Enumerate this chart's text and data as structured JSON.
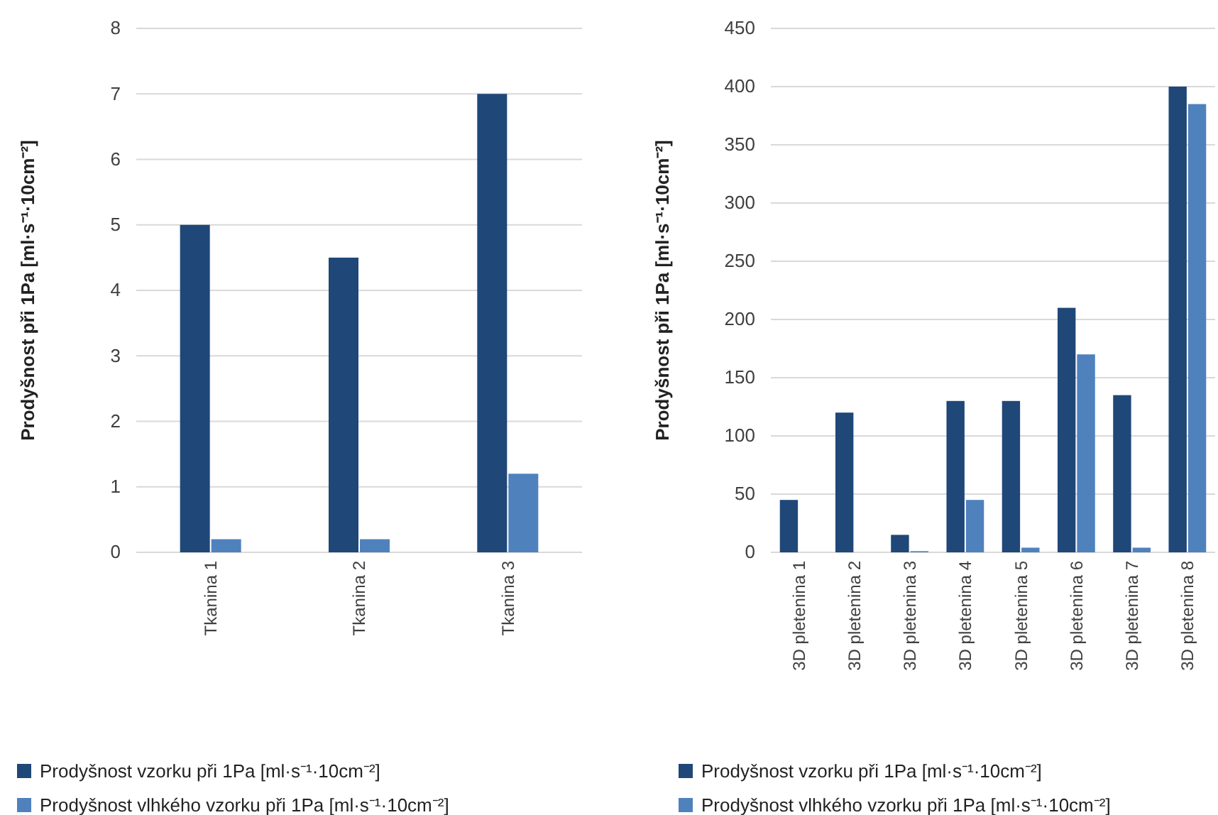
{
  "chart_data": [
    {
      "type": "bar",
      "ylabel": "Prodyšnost při 1Pa [ml·s⁻¹·10cm⁻²]",
      "categories": [
        "Tkanina 1",
        "Tkanina 2",
        "Tkanina 3"
      ],
      "ylim": [
        0,
        8
      ],
      "yticks": [
        0,
        1,
        2,
        3,
        4,
        5,
        6,
        7,
        8
      ],
      "grid": "y",
      "legend": "bottom",
      "series": [
        {
          "name": "Prodyšnost vzorku při 1Pa [ml·s⁻¹·10cm⁻²]",
          "color": "#1f4778",
          "values": [
            5,
            4.5,
            7
          ]
        },
        {
          "name": "Prodyšnost vlhkého vzorku při 1Pa [ml·s⁻¹·10cm⁻²]",
          "color": "#4f81bd",
          "values": [
            0.2,
            0.2,
            1.2
          ]
        }
      ]
    },
    {
      "type": "bar",
      "ylabel": "Prodyšnost při 1Pa [ml·s⁻¹·10cm⁻²]",
      "categories": [
        "3D pletenina 1",
        "3D pletenina 2",
        "3D pletenina 3",
        "3D pletenina 4",
        "3D pletenina 5",
        "3D pletenina 6",
        "3D pletenina 7",
        "3D pletenina 8"
      ],
      "ylim": [
        0,
        450
      ],
      "yticks": [
        0,
        50,
        100,
        150,
        200,
        250,
        300,
        350,
        400,
        450
      ],
      "grid": "y",
      "legend": "bottom",
      "series": [
        {
          "name": "Prodyšnost vzorku při 1Pa [ml·s⁻¹·10cm⁻²]",
          "color": "#1f4778",
          "values": [
            45,
            120,
            15,
            130,
            130,
            210,
            135,
            400
          ]
        },
        {
          "name": "Prodyšnost vlhkého vzorku při 1Pa [ml·s⁻¹·10cm⁻²]",
          "color": "#4f81bd",
          "values": [
            0,
            0,
            1,
            45,
            4,
            170,
            4,
            385
          ]
        }
      ]
    }
  ]
}
